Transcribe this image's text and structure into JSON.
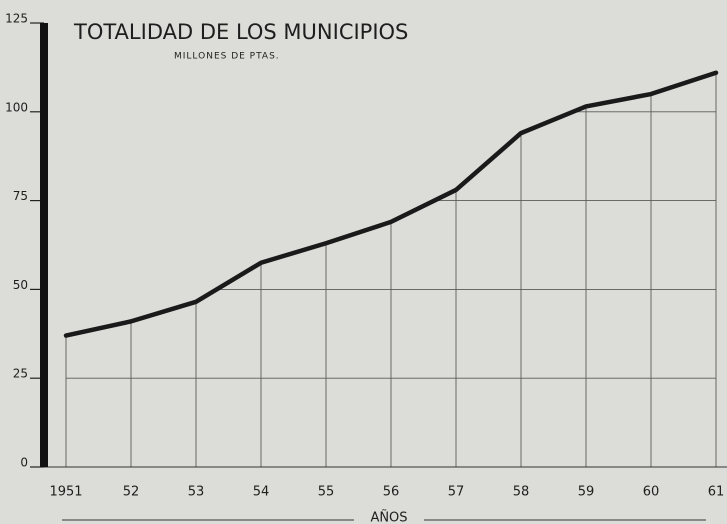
{
  "chart_data": {
    "type": "line",
    "title": "TOTALIDAD DE LOS MUNICIPIOS",
    "subtitle": "MILLONES DE PTAS.",
    "x_label": "AÑOS",
    "categories": [
      "1951",
      "52",
      "53",
      "54",
      "55",
      "56",
      "57",
      "58",
      "59",
      "60",
      "61"
    ],
    "values": [
      37,
      41,
      46.5,
      57.5,
      63,
      69,
      78,
      94,
      101.5,
      105,
      111
    ],
    "color": "#1a1a1a",
    "ylim": [
      0,
      125
    ],
    "yticks": [
      0,
      25,
      50,
      75,
      100,
      125
    ],
    "grid": true
  }
}
